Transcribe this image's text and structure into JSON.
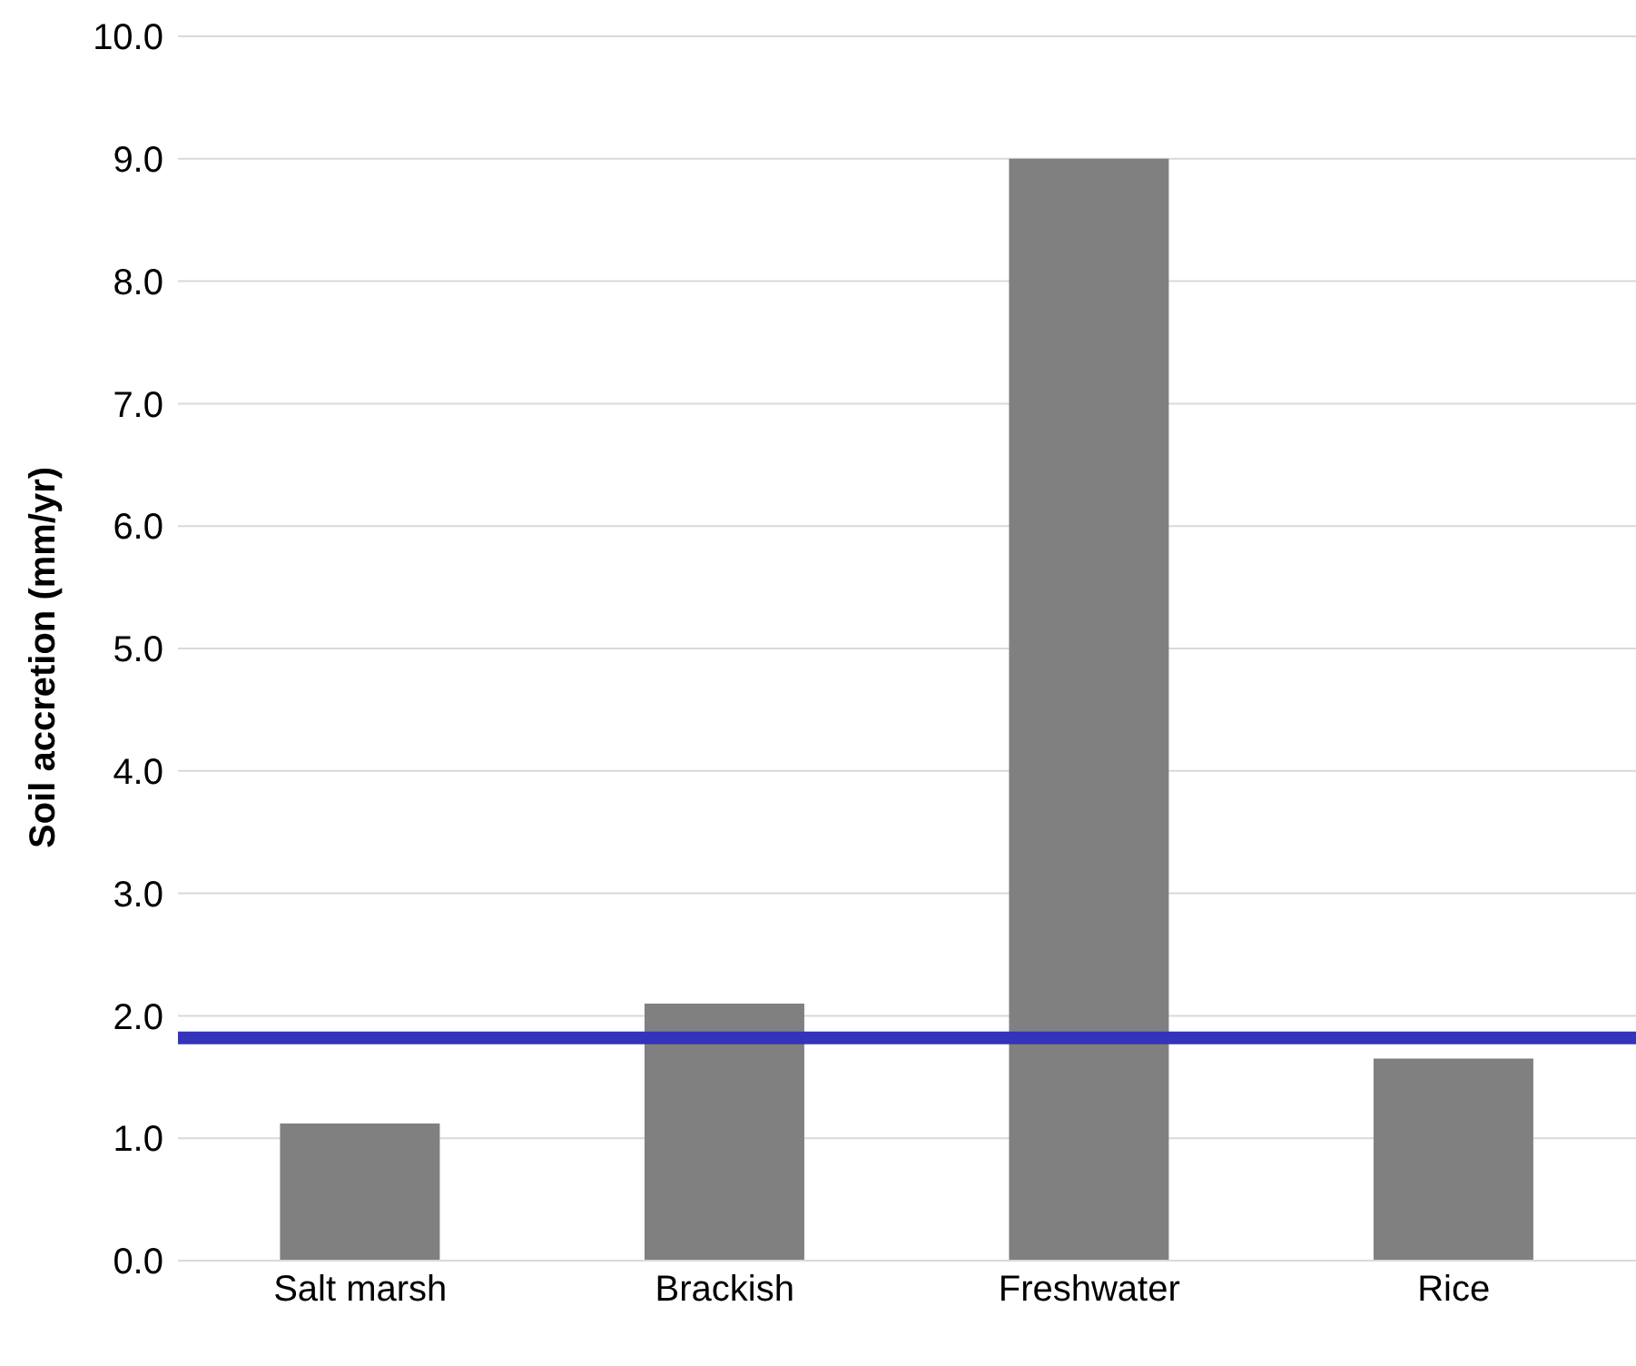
{
  "chart_data": {
    "type": "bar",
    "ylabel": "Soil accretion (mm/yr)",
    "categories": [
      "Salt marsh",
      "Brackish",
      "Freshwater",
      "Rice"
    ],
    "values": [
      1.12,
      2.1,
      9.0,
      1.65
    ],
    "color": "#808080",
    "ylim": [
      0,
      10
    ],
    "yticks": [
      {
        "value": 0,
        "label": "0.0"
      },
      {
        "value": 1,
        "label": "1.0"
      },
      {
        "value": 2,
        "label": "2.0"
      },
      {
        "value": 3,
        "label": "3.0"
      },
      {
        "value": 4,
        "label": "4.0"
      },
      {
        "value": 5,
        "label": "5.0"
      },
      {
        "value": 6,
        "label": "6.0"
      },
      {
        "value": 7,
        "label": "7.0"
      },
      {
        "value": 8,
        "label": "8.0"
      },
      {
        "value": 9,
        "label": "9.0"
      },
      {
        "value": 10,
        "label": "10.0"
      }
    ],
    "grid": "y",
    "legend": false,
    "ref_lines": [
      {
        "axis": "y",
        "value": 1.82,
        "color": "#3333bb"
      }
    ]
  }
}
